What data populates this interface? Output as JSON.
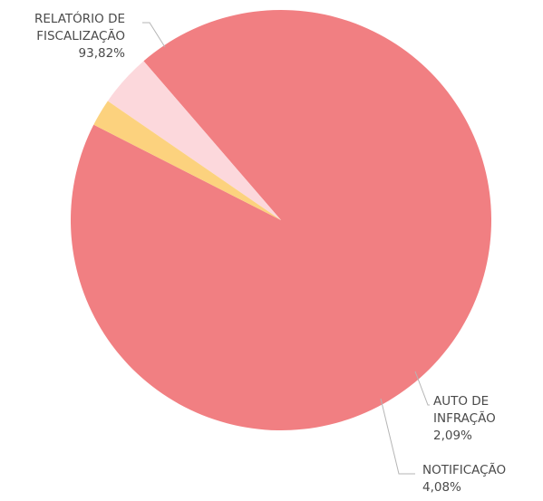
{
  "chart_data": {
    "type": "pie",
    "title": "",
    "start_angle_deg": 153,
    "direction": "counterclockwise",
    "slices": [
      {
        "label_lines": [
          "RELATÓRIO DE",
          "FISCALIZAÇÃO"
        ],
        "value": 93.82,
        "value_label": "93,82%",
        "color": "#f17f82"
      },
      {
        "label_lines": [
          "NOTIFICAÇÃO"
        ],
        "value": 4.08,
        "value_label": "4,08%",
        "color": "#fcd8dc"
      },
      {
        "label_lines": [
          "AUTO DE",
          "INFRAÇÃO"
        ],
        "value": 2.09,
        "value_label": "2,09%",
        "color": "#fcd27e"
      }
    ]
  }
}
